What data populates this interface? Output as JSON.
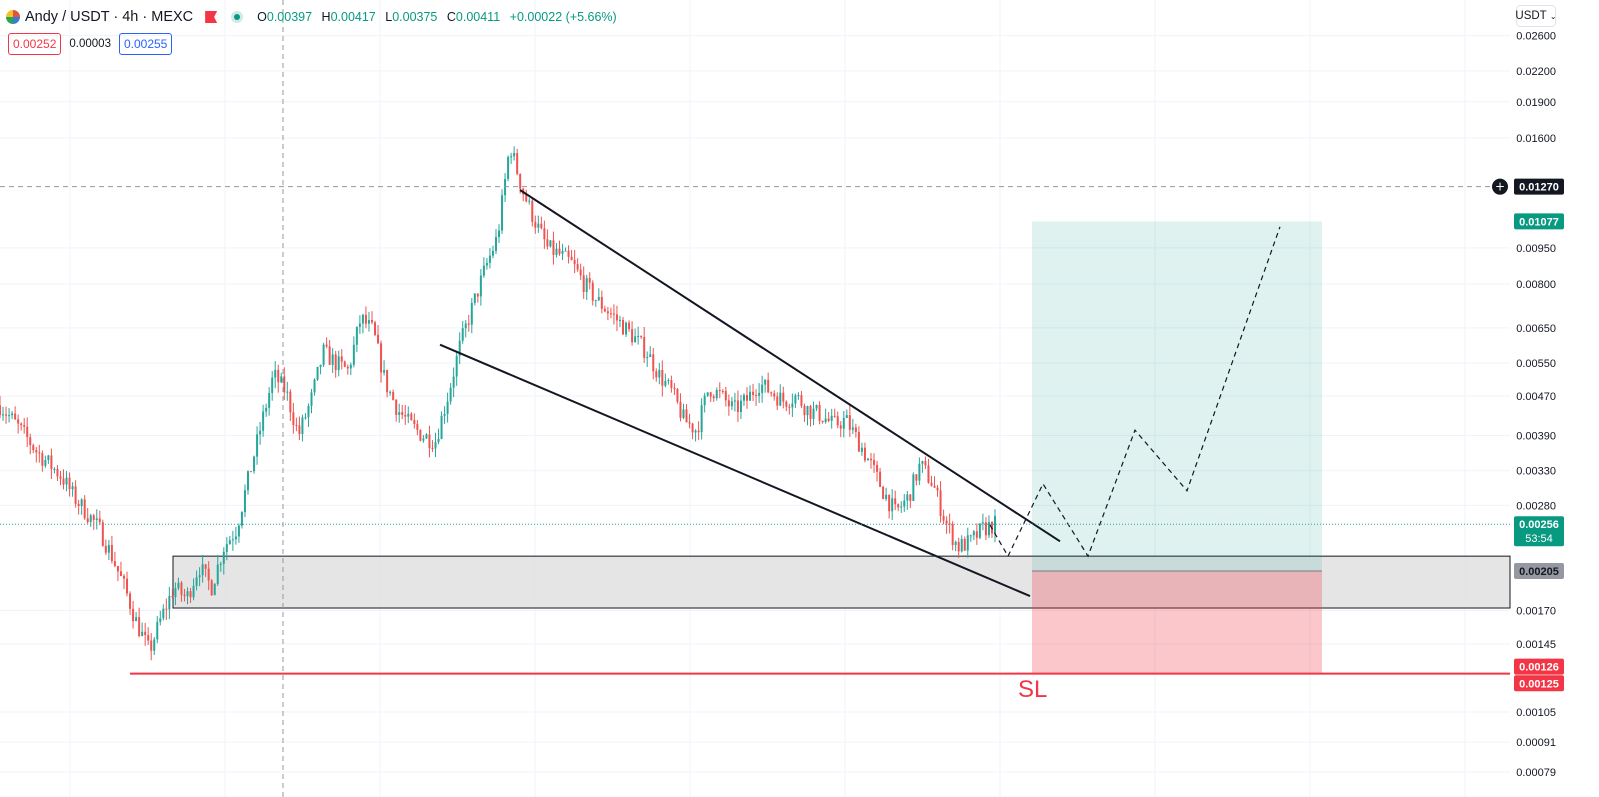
{
  "header": {
    "symbol": "Andy / USDT · 4h · MEXC",
    "ohlc": {
      "o_label": "O",
      "o": "0.00397",
      "h_label": "H",
      "h": "0.00417",
      "l_label": "L",
      "l": "0.00375",
      "c_label": "C",
      "c": "0.00411",
      "change": "+0.00022 (+5.66%)"
    },
    "sell_price": "0.00252",
    "spread": "0.00003",
    "buy_price": "0.00255",
    "currency": "USDT"
  },
  "colors": {
    "up": "#26a69a",
    "down": "#ef5350",
    "target": "#089981",
    "stop": "#f23645",
    "zone": "#e0e0e0",
    "crosshair": "#9598a1"
  },
  "chart_data": {
    "type": "candlestick",
    "scale": "log",
    "y_ticks": [
      "0.02600",
      "0.02200",
      "0.01900",
      "0.01600",
      "0.00950",
      "0.00800",
      "0.00650",
      "0.00550",
      "0.00470",
      "0.00390",
      "0.00330",
      "0.00280",
      "0.00170",
      "0.00145",
      "0.00105",
      "0.00091",
      "0.00079"
    ],
    "y_tick_values": [
      0.026,
      0.022,
      0.019,
      0.016,
      0.0095,
      0.008,
      0.0065,
      0.0055,
      0.0047,
      0.0039,
      0.0033,
      0.0028,
      0.0017,
      0.00145,
      0.00105,
      0.00091,
      0.00079
    ],
    "price_labels": [
      {
        "text": "0.01270",
        "value": 0.0127,
        "role": "crosshair"
      },
      {
        "text": "0.01077",
        "value": 0.01077,
        "role": "target"
      },
      {
        "text": "0.00256",
        "value": 0.00256,
        "role": "last",
        "sub": "53:54"
      },
      {
        "text": "0.00205",
        "value": 0.00205,
        "role": "entry"
      },
      {
        "text": "0.00126",
        "value": 0.00126,
        "role": "stop"
      },
      {
        "text": "0.00125",
        "value": 0.00125,
        "role": "stop2"
      }
    ],
    "price_path": [
      0.0045,
      0.0042,
      0.0039,
      0.0036,
      0.0034,
      0.0032,
      0.0029,
      0.0027,
      0.0025,
      0.0022,
      0.0019,
      0.0016,
      0.0014,
      0.00165,
      0.0019,
      0.0018,
      0.0021,
      0.0019,
      0.0023,
      0.0025,
      0.0032,
      0.0041,
      0.0052,
      0.0048,
      0.0039,
      0.0046,
      0.0058,
      0.0055,
      0.0053,
      0.0068,
      0.0064,
      0.005,
      0.0044,
      0.0041,
      0.0039,
      0.0038,
      0.0047,
      0.006,
      0.0072,
      0.0086,
      0.01,
      0.0155,
      0.0125,
      0.0108,
      0.0095,
      0.0092,
      0.0088,
      0.008,
      0.0074,
      0.007,
      0.0066,
      0.0062,
      0.0058,
      0.0052,
      0.0048,
      0.0042,
      0.004,
      0.0049,
      0.0047,
      0.0044,
      0.0046,
      0.005,
      0.0048,
      0.0046,
      0.0047,
      0.0044,
      0.0043,
      0.0041,
      0.0042,
      0.0038,
      0.0034,
      0.003,
      0.0027,
      0.0029,
      0.0034,
      0.0031,
      0.0026,
      0.0023,
      0.00235,
      0.0025,
      0.00256
    ],
    "candle_x_range": [
      0,
      995
    ],
    "wedge_upper": {
      "x1": 520,
      "v1": 0.0125,
      "x2": 1060,
      "v2": 0.00236
    },
    "wedge_lower": {
      "x1": 440,
      "v1": 0.006,
      "x2": 1030,
      "v2": 0.00182
    },
    "support_zone": {
      "x1": 173,
      "x2": 1510,
      "top": 0.0022,
      "bottom": 0.00172
    },
    "stop_line": {
      "x1": 130,
      "x2": 1510,
      "value": 0.00126
    },
    "position": {
      "x1": 1032,
      "x2": 1322,
      "entry": 0.00205,
      "target": 0.01077,
      "stop": 0.00126
    },
    "projection": [
      [
        990,
        0.00255
      ],
      [
        1008,
        0.0022
      ],
      [
        1043,
        0.0031
      ],
      [
        1088,
        0.0022
      ],
      [
        1135,
        0.004
      ],
      [
        1187,
        0.003
      ],
      [
        1280,
        0.0105
      ]
    ],
    "crosshair": {
      "x": 283,
      "value": 0.0127
    },
    "sl_label": "SL"
  }
}
